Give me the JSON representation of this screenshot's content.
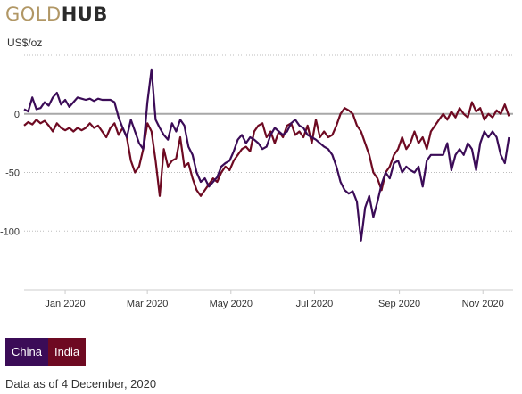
{
  "brand": {
    "part1": "GOLD",
    "part2": "HUB"
  },
  "colors": {
    "china": "#3b0c57",
    "india": "#6e0a22",
    "zero_line": "#a8a8a8",
    "grid": "#bdbdbd"
  },
  "footnote": "Data as of 4 December, 2020",
  "chart_data": {
    "type": "line",
    "title": "",
    "ylabel": "US$/oz",
    "xlabel": "",
    "yticks": [
      0,
      -50,
      -100
    ],
    "ytick_labels": [
      "0",
      "-50",
      "-100"
    ],
    "ylim": [
      -150,
      50
    ],
    "xlim": [
      "2019-12-16",
      "2020-12-07"
    ],
    "xticks": [
      "2020-01-15",
      "2020-03-15",
      "2020-05-15",
      "2020-07-15",
      "2020-09-15",
      "2020-11-15"
    ],
    "xtick_labels": [
      "Jan 2020",
      "Mar 2020",
      "May 2020",
      "Jul 2020",
      "Sep 2020",
      "Nov 2020"
    ],
    "grid": "horizontal dotted",
    "legend_position": "bottom-left",
    "series": [
      {
        "name": "China",
        "points": [
          [
            "2019-12-16",
            4
          ],
          [
            "2019-12-19",
            2
          ],
          [
            "2019-12-22",
            14
          ],
          [
            "2019-12-25",
            4
          ],
          [
            "2019-12-28",
            5
          ],
          [
            "2019-12-31",
            10
          ],
          [
            "2020-01-03",
            7
          ],
          [
            "2020-01-06",
            14
          ],
          [
            "2020-01-09",
            18
          ],
          [
            "2020-01-12",
            8
          ],
          [
            "2020-01-15",
            12
          ],
          [
            "2020-01-18",
            6
          ],
          [
            "2020-01-21",
            10
          ],
          [
            "2020-01-24",
            14
          ],
          [
            "2020-01-27",
            13
          ],
          [
            "2020-01-30",
            12
          ],
          [
            "2020-02-02",
            13
          ],
          [
            "2020-02-05",
            11
          ],
          [
            "2020-02-08",
            13
          ],
          [
            "2020-02-11",
            12
          ],
          [
            "2020-02-14",
            12
          ],
          [
            "2020-02-17",
            12
          ],
          [
            "2020-02-20",
            10
          ],
          [
            "2020-02-23",
            -3
          ],
          [
            "2020-02-26",
            -12
          ],
          [
            "2020-02-29",
            -20
          ],
          [
            "2020-03-03",
            -5
          ],
          [
            "2020-03-06",
            -15
          ],
          [
            "2020-03-09",
            -25
          ],
          [
            "2020-03-12",
            -30
          ],
          [
            "2020-03-15",
            10
          ],
          [
            "2020-03-18",
            38
          ],
          [
            "2020-03-21",
            -5
          ],
          [
            "2020-03-24",
            -12
          ],
          [
            "2020-03-27",
            -18
          ],
          [
            "2020-03-30",
            -22
          ],
          [
            "2020-04-02",
            -8
          ],
          [
            "2020-04-05",
            -15
          ],
          [
            "2020-04-08",
            -5
          ],
          [
            "2020-04-11",
            -10
          ],
          [
            "2020-04-14",
            -28
          ],
          [
            "2020-04-17",
            -35
          ],
          [
            "2020-04-20",
            -50
          ],
          [
            "2020-04-23",
            -58
          ],
          [
            "2020-04-26",
            -55
          ],
          [
            "2020-04-29",
            -62
          ],
          [
            "2020-05-02",
            -58
          ],
          [
            "2020-05-05",
            -54
          ],
          [
            "2020-05-08",
            -45
          ],
          [
            "2020-05-11",
            -42
          ],
          [
            "2020-05-14",
            -40
          ],
          [
            "2020-05-17",
            -32
          ],
          [
            "2020-05-20",
            -22
          ],
          [
            "2020-05-23",
            -18
          ],
          [
            "2020-05-26",
            -25
          ],
          [
            "2020-05-29",
            -20
          ],
          [
            "2020-06-01",
            -22
          ],
          [
            "2020-06-04",
            -25
          ],
          [
            "2020-06-07",
            -30
          ],
          [
            "2020-06-10",
            -28
          ],
          [
            "2020-06-13",
            -18
          ],
          [
            "2020-06-16",
            -12
          ],
          [
            "2020-06-19",
            -15
          ],
          [
            "2020-06-22",
            -18
          ],
          [
            "2020-06-25",
            -15
          ],
          [
            "2020-06-28",
            -8
          ],
          [
            "2020-07-01",
            -5
          ],
          [
            "2020-07-04",
            -10
          ],
          [
            "2020-07-07",
            -12
          ],
          [
            "2020-07-10",
            -18
          ],
          [
            "2020-07-13",
            -20
          ],
          [
            "2020-07-16",
            -22
          ],
          [
            "2020-07-19",
            -25
          ],
          [
            "2020-07-22",
            -28
          ],
          [
            "2020-07-25",
            -30
          ],
          [
            "2020-07-28",
            -35
          ],
          [
            "2020-07-31",
            -45
          ],
          [
            "2020-08-03",
            -58
          ],
          [
            "2020-08-06",
            -65
          ],
          [
            "2020-08-09",
            -68
          ],
          [
            "2020-08-12",
            -66
          ],
          [
            "2020-08-15",
            -75
          ],
          [
            "2020-08-18",
            -108
          ],
          [
            "2020-08-21",
            -80
          ],
          [
            "2020-08-24",
            -70
          ],
          [
            "2020-08-27",
            -88
          ],
          [
            "2020-08-30",
            -75
          ],
          [
            "2020-09-02",
            -60
          ],
          [
            "2020-09-05",
            -50
          ],
          [
            "2020-09-08",
            -55
          ],
          [
            "2020-09-11",
            -42
          ],
          [
            "2020-09-14",
            -40
          ],
          [
            "2020-09-17",
            -50
          ],
          [
            "2020-09-20",
            -45
          ],
          [
            "2020-09-23",
            -48
          ],
          [
            "2020-09-26",
            -50
          ],
          [
            "2020-09-29",
            -45
          ],
          [
            "2020-10-02",
            -62
          ],
          [
            "2020-10-05",
            -40
          ],
          [
            "2020-10-08",
            -35
          ],
          [
            "2020-10-11",
            -35
          ],
          [
            "2020-10-14",
            -35
          ],
          [
            "2020-10-17",
            -35
          ],
          [
            "2020-10-20",
            -25
          ],
          [
            "2020-10-23",
            -48
          ],
          [
            "2020-10-26",
            -35
          ],
          [
            "2020-10-29",
            -30
          ],
          [
            "2020-11-01",
            -35
          ],
          [
            "2020-11-04",
            -25
          ],
          [
            "2020-11-07",
            -30
          ],
          [
            "2020-11-10",
            -48
          ],
          [
            "2020-11-13",
            -25
          ],
          [
            "2020-11-16",
            -15
          ],
          [
            "2020-11-19",
            -20
          ],
          [
            "2020-11-22",
            -15
          ],
          [
            "2020-11-25",
            -20
          ],
          [
            "2020-11-28",
            -35
          ],
          [
            "2020-12-01",
            -42
          ],
          [
            "2020-12-04",
            -20
          ]
        ]
      },
      {
        "name": "India",
        "points": [
          [
            "2019-12-16",
            -10
          ],
          [
            "2019-12-19",
            -7
          ],
          [
            "2019-12-22",
            -9
          ],
          [
            "2019-12-25",
            -5
          ],
          [
            "2019-12-28",
            -8
          ],
          [
            "2019-12-31",
            -6
          ],
          [
            "2020-01-03",
            -10
          ],
          [
            "2020-01-06",
            -15
          ],
          [
            "2020-01-09",
            -8
          ],
          [
            "2020-01-12",
            -12
          ],
          [
            "2020-01-15",
            -14
          ],
          [
            "2020-01-18",
            -12
          ],
          [
            "2020-01-21",
            -15
          ],
          [
            "2020-01-24",
            -12
          ],
          [
            "2020-01-27",
            -14
          ],
          [
            "2020-01-30",
            -12
          ],
          [
            "2020-02-02",
            -8
          ],
          [
            "2020-02-05",
            -12
          ],
          [
            "2020-02-08",
            -10
          ],
          [
            "2020-02-11",
            -15
          ],
          [
            "2020-02-14",
            -20
          ],
          [
            "2020-02-17",
            -12
          ],
          [
            "2020-02-20",
            -8
          ],
          [
            "2020-02-23",
            -18
          ],
          [
            "2020-02-26",
            -12
          ],
          [
            "2020-02-29",
            -20
          ],
          [
            "2020-03-03",
            -40
          ],
          [
            "2020-03-06",
            -50
          ],
          [
            "2020-03-09",
            -45
          ],
          [
            "2020-03-12",
            -30
          ],
          [
            "2020-03-15",
            -8
          ],
          [
            "2020-03-18",
            -15
          ],
          [
            "2020-03-21",
            -40
          ],
          [
            "2020-03-24",
            -70
          ],
          [
            "2020-03-27",
            -30
          ],
          [
            "2020-03-30",
            -45
          ],
          [
            "2020-04-02",
            -40
          ],
          [
            "2020-04-05",
            -38
          ],
          [
            "2020-04-08",
            -20
          ],
          [
            "2020-04-11",
            -45
          ],
          [
            "2020-04-14",
            -42
          ],
          [
            "2020-04-17",
            -55
          ],
          [
            "2020-04-20",
            -65
          ],
          [
            "2020-04-23",
            -70
          ],
          [
            "2020-04-26",
            -65
          ],
          [
            "2020-04-29",
            -60
          ],
          [
            "2020-05-02",
            -55
          ],
          [
            "2020-05-05",
            -58
          ],
          [
            "2020-05-08",
            -50
          ],
          [
            "2020-05-11",
            -45
          ],
          [
            "2020-05-14",
            -48
          ],
          [
            "2020-05-17",
            -40
          ],
          [
            "2020-05-20",
            -35
          ],
          [
            "2020-05-23",
            -30
          ],
          [
            "2020-05-26",
            -28
          ],
          [
            "2020-05-29",
            -32
          ],
          [
            "2020-06-01",
            -15
          ],
          [
            "2020-06-04",
            -10
          ],
          [
            "2020-06-07",
            -8
          ],
          [
            "2020-06-10",
            -20
          ],
          [
            "2020-06-13",
            -15
          ],
          [
            "2020-06-16",
            -25
          ],
          [
            "2020-06-19",
            -15
          ],
          [
            "2020-06-22",
            -20
          ],
          [
            "2020-06-25",
            -10
          ],
          [
            "2020-06-28",
            -8
          ],
          [
            "2020-07-01",
            -18
          ],
          [
            "2020-07-04",
            -15
          ],
          [
            "2020-07-07",
            -20
          ],
          [
            "2020-07-10",
            -10
          ],
          [
            "2020-07-13",
            -25
          ],
          [
            "2020-07-16",
            -5
          ],
          [
            "2020-07-19",
            -20
          ],
          [
            "2020-07-22",
            -15
          ],
          [
            "2020-07-25",
            -20
          ],
          [
            "2020-07-28",
            -18
          ],
          [
            "2020-07-31",
            -10
          ],
          [
            "2020-08-03",
            0
          ],
          [
            "2020-08-06",
            5
          ],
          [
            "2020-08-09",
            3
          ],
          [
            "2020-08-12",
            0
          ],
          [
            "2020-08-15",
            -10
          ],
          [
            "2020-08-18",
            -15
          ],
          [
            "2020-08-21",
            -25
          ],
          [
            "2020-08-24",
            -35
          ],
          [
            "2020-08-27",
            -50
          ],
          [
            "2020-08-30",
            -55
          ],
          [
            "2020-09-02",
            -65
          ],
          [
            "2020-09-05",
            -50
          ],
          [
            "2020-09-08",
            -45
          ],
          [
            "2020-09-11",
            -35
          ],
          [
            "2020-09-14",
            -30
          ],
          [
            "2020-09-17",
            -20
          ],
          [
            "2020-09-20",
            -30
          ],
          [
            "2020-09-23",
            -25
          ],
          [
            "2020-09-26",
            -15
          ],
          [
            "2020-09-29",
            -25
          ],
          [
            "2020-10-02",
            -20
          ],
          [
            "2020-10-05",
            -30
          ],
          [
            "2020-10-08",
            -15
          ],
          [
            "2020-10-11",
            -10
          ],
          [
            "2020-10-14",
            -5
          ],
          [
            "2020-10-17",
            0
          ],
          [
            "2020-10-20",
            -5
          ],
          [
            "2020-10-23",
            2
          ],
          [
            "2020-10-26",
            -3
          ],
          [
            "2020-10-29",
            5
          ],
          [
            "2020-11-01",
            0
          ],
          [
            "2020-11-04",
            -3
          ],
          [
            "2020-11-07",
            10
          ],
          [
            "2020-11-10",
            2
          ],
          [
            "2020-11-13",
            5
          ],
          [
            "2020-11-16",
            -5
          ],
          [
            "2020-11-19",
            0
          ],
          [
            "2020-11-22",
            -3
          ],
          [
            "2020-11-25",
            3
          ],
          [
            "2020-11-28",
            0
          ],
          [
            "2020-12-01",
            8
          ],
          [
            "2020-12-04",
            -2
          ]
        ]
      }
    ]
  }
}
